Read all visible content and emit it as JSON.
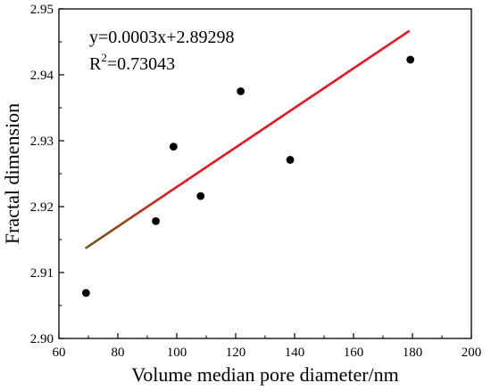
{
  "chart_data": {
    "type": "scatter",
    "xlabel": "Volume median pore diameter/nm",
    "ylabel": "Fractal dimension",
    "xlim": [
      60,
      200
    ],
    "ylim": [
      2.9,
      2.95
    ],
    "x_ticks": [
      "60",
      "80",
      "100",
      "120",
      "140",
      "160",
      "180",
      "200"
    ],
    "y_ticks": [
      "2.90",
      "2.91",
      "2.92",
      "2.93",
      "2.94",
      "2.95"
    ],
    "grid": false,
    "points": [
      {
        "x": 69.2,
        "y": 2.9069
      },
      {
        "x": 92.9,
        "y": 2.9178
      },
      {
        "x": 98.9,
        "y": 2.9291
      },
      {
        "x": 108.1,
        "y": 2.9216
      },
      {
        "x": 121.7,
        "y": 2.9375
      },
      {
        "x": 138.5,
        "y": 2.9271
      },
      {
        "x": 179.3,
        "y": 2.9423
      }
    ],
    "fit_line": {
      "slope": 0.0003,
      "intercept": 2.89298,
      "x_range": [
        69,
        179
      ],
      "color": "#e8141c",
      "color_low": "#6b5a1a"
    },
    "marker_color": "#000000",
    "annotations": {
      "equation": "y=0.0003x+2.89298",
      "r2_prefix": "R",
      "r2_sup": "2",
      "r2_value": "=0.73043"
    }
  }
}
